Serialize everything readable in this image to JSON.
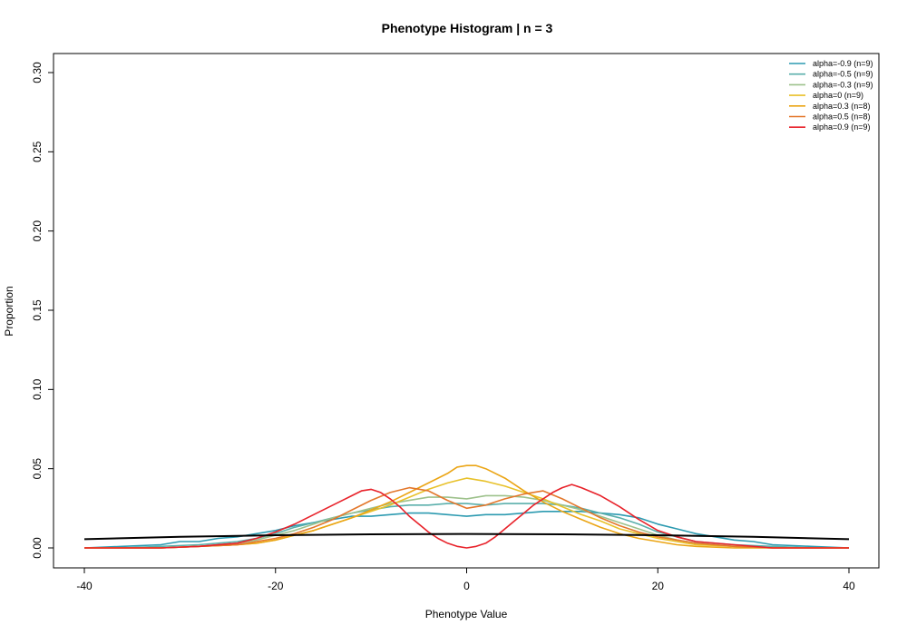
{
  "chart_data": {
    "type": "line",
    "title": "Phenotype Histogram | n = 3",
    "xlabel": "Phenotype Value",
    "ylabel": "Proportion",
    "xlim": [
      -40,
      40
    ],
    "ylim": [
      0,
      0.3
    ],
    "x_ticks": [
      -40,
      -20,
      0,
      20,
      40
    ],
    "y_ticks": [
      0.0,
      0.05,
      0.1,
      0.15,
      0.2,
      0.25,
      0.3
    ],
    "x_tick_labels": [
      "-40",
      "-20",
      "0",
      "20",
      "40"
    ],
    "y_tick_labels": [
      "0.00",
      "0.05",
      "0.10",
      "0.15",
      "0.20",
      "0.25",
      "0.30"
    ],
    "legend_position": "top-right",
    "grid": false,
    "series": [
      {
        "name": "alpha=-0.9 (n=9)",
        "color": "#2C9AB0",
        "x": [
          -40,
          -36,
          -32,
          -30,
          -28,
          -26,
          -24,
          -22,
          -20,
          -18,
          -16,
          -14,
          -12,
          -10,
          -8,
          -6,
          -4,
          -2,
          0,
          2,
          4,
          6,
          8,
          10,
          12,
          14,
          16,
          18,
          20,
          22,
          24,
          26,
          28,
          30,
          32,
          36,
          40
        ],
        "y": [
          0.0,
          0.001,
          0.002,
          0.004,
          0.004,
          0.006,
          0.007,
          0.009,
          0.011,
          0.014,
          0.016,
          0.018,
          0.02,
          0.02,
          0.021,
          0.022,
          0.022,
          0.021,
          0.02,
          0.021,
          0.021,
          0.022,
          0.023,
          0.023,
          0.023,
          0.022,
          0.021,
          0.019,
          0.015,
          0.012,
          0.009,
          0.007,
          0.005,
          0.004,
          0.002,
          0.001,
          0.0
        ]
      },
      {
        "name": "alpha=-0.5 (n=9)",
        "color": "#5AAFAB",
        "x": [
          -40,
          -36,
          -32,
          -28,
          -24,
          -22,
          -20,
          -18,
          -16,
          -14,
          -12,
          -10,
          -8,
          -6,
          -4,
          -2,
          0,
          2,
          4,
          6,
          8,
          10,
          12,
          14,
          16,
          18,
          20,
          22,
          24,
          28,
          32,
          36,
          40
        ],
        "y": [
          0.0,
          0.0,
          0.001,
          0.002,
          0.004,
          0.006,
          0.009,
          0.013,
          0.016,
          0.019,
          0.022,
          0.024,
          0.026,
          0.027,
          0.027,
          0.028,
          0.028,
          0.027,
          0.028,
          0.028,
          0.028,
          0.027,
          0.025,
          0.022,
          0.019,
          0.015,
          0.01,
          0.007,
          0.004,
          0.002,
          0.001,
          0.0,
          0.0
        ]
      },
      {
        "name": "alpha=-0.3 (n=9)",
        "color": "#9DC18B",
        "x": [
          -40,
          -36,
          -32,
          -28,
          -24,
          -22,
          -20,
          -18,
          -16,
          -14,
          -12,
          -10,
          -8,
          -6,
          -4,
          -2,
          0,
          2,
          4,
          6,
          8,
          10,
          12,
          14,
          16,
          18,
          20,
          22,
          24,
          28,
          32,
          36,
          40
        ],
        "y": [
          0.0,
          0.0,
          0.0,
          0.001,
          0.003,
          0.005,
          0.008,
          0.011,
          0.015,
          0.019,
          0.022,
          0.025,
          0.028,
          0.03,
          0.032,
          0.032,
          0.031,
          0.033,
          0.033,
          0.032,
          0.03,
          0.027,
          0.024,
          0.02,
          0.016,
          0.012,
          0.008,
          0.005,
          0.003,
          0.001,
          0.0,
          0.0,
          0.0
        ]
      },
      {
        "name": "alpha=0 (n=9)",
        "color": "#E8C12A",
        "x": [
          -40,
          -36,
          -32,
          -28,
          -24,
          -22,
          -20,
          -18,
          -16,
          -14,
          -12,
          -10,
          -8,
          -6,
          -4,
          -2,
          0,
          2,
          4,
          6,
          8,
          10,
          12,
          14,
          16,
          18,
          20,
          22,
          24,
          28,
          32,
          36,
          40
        ],
        "y": [
          0.0,
          0.0,
          0.0,
          0.001,
          0.002,
          0.003,
          0.005,
          0.008,
          0.011,
          0.015,
          0.019,
          0.023,
          0.027,
          0.032,
          0.037,
          0.041,
          0.044,
          0.042,
          0.039,
          0.035,
          0.031,
          0.026,
          0.021,
          0.017,
          0.012,
          0.009,
          0.006,
          0.004,
          0.002,
          0.001,
          0.0,
          0.0,
          0.0
        ]
      },
      {
        "name": "alpha=0.3 (n=8)",
        "color": "#EBA515",
        "x": [
          -40,
          -36,
          -32,
          -28,
          -24,
          -22,
          -20,
          -18,
          -16,
          -14,
          -12,
          -10,
          -8,
          -6,
          -4,
          -2,
          -1,
          0,
          1,
          2,
          4,
          6,
          8,
          10,
          12,
          14,
          16,
          18,
          20,
          22,
          24,
          28,
          32,
          36,
          40
        ],
        "y": [
          0.0,
          0.0,
          0.0,
          0.001,
          0.002,
          0.003,
          0.005,
          0.008,
          0.011,
          0.015,
          0.019,
          0.024,
          0.029,
          0.035,
          0.041,
          0.047,
          0.051,
          0.052,
          0.052,
          0.05,
          0.044,
          0.036,
          0.029,
          0.023,
          0.018,
          0.013,
          0.009,
          0.006,
          0.004,
          0.002,
          0.001,
          0.0,
          0.0,
          0.0,
          0.0
        ]
      },
      {
        "name": "alpha=0.5 (n=8)",
        "color": "#E3772B",
        "x": [
          -40,
          -36,
          -32,
          -28,
          -24,
          -22,
          -20,
          -18,
          -16,
          -14,
          -12,
          -10,
          -8,
          -6,
          -4,
          -2,
          0,
          2,
          4,
          6,
          8,
          10,
          12,
          14,
          16,
          18,
          20,
          22,
          24,
          28,
          32,
          36,
          40
        ],
        "y": [
          0.0,
          0.0,
          0.0,
          0.001,
          0.002,
          0.004,
          0.006,
          0.009,
          0.013,
          0.018,
          0.024,
          0.03,
          0.035,
          0.038,
          0.036,
          0.03,
          0.025,
          0.027,
          0.031,
          0.034,
          0.036,
          0.031,
          0.025,
          0.019,
          0.014,
          0.01,
          0.007,
          0.005,
          0.003,
          0.001,
          0.0,
          0.0,
          0.0
        ]
      },
      {
        "name": "alpha=0.9 (n=9)",
        "color": "#E8222A",
        "x": [
          -40,
          -36,
          -32,
          -28,
          -24,
          -22,
          -20,
          -18,
          -16,
          -14,
          -12,
          -11,
          -10,
          -9,
          -8,
          -7,
          -6,
          -5,
          -4,
          -3,
          -2,
          -1,
          0,
          1,
          2,
          3,
          4,
          5,
          6,
          7,
          8,
          9,
          10,
          11,
          12,
          14,
          16,
          18,
          20,
          22,
          24,
          28,
          32,
          36,
          40
        ],
        "y": [
          0.0,
          0.0,
          0.0,
          0.001,
          0.003,
          0.006,
          0.01,
          0.015,
          0.021,
          0.027,
          0.033,
          0.036,
          0.037,
          0.035,
          0.031,
          0.026,
          0.02,
          0.015,
          0.01,
          0.006,
          0.003,
          0.001,
          0.0,
          0.001,
          0.003,
          0.007,
          0.012,
          0.017,
          0.022,
          0.027,
          0.031,
          0.035,
          0.038,
          0.04,
          0.038,
          0.033,
          0.026,
          0.018,
          0.011,
          0.007,
          0.004,
          0.002,
          0.0,
          0.0,
          0.0
        ]
      },
      {
        "name": "",
        "color": "#000000",
        "x": [
          -40,
          -30,
          -20,
          -10,
          0,
          10,
          20,
          30,
          40
        ],
        "y": [
          0.0055,
          0.007,
          0.008,
          0.0086,
          0.0088,
          0.0086,
          0.008,
          0.007,
          0.0055
        ]
      }
    ]
  }
}
